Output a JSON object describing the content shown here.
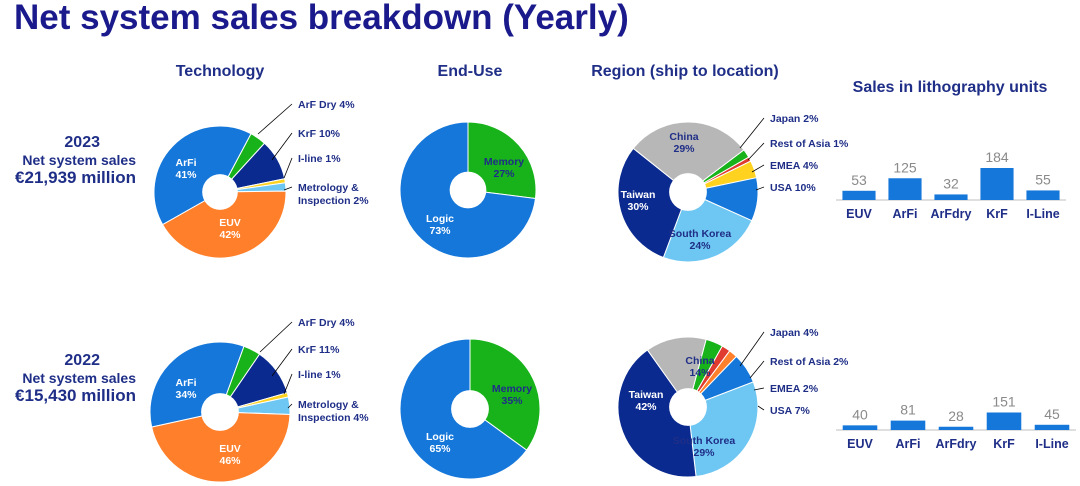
{
  "title": "Net system sales breakdown (Yearly)",
  "headers": {
    "technology": "Technology",
    "end_use": "End-Use",
    "region": "Region (ship to location)",
    "units": "Sales in lithography units"
  },
  "colors": {
    "title": "#1a1a8c",
    "label": "#1f2e87",
    "blue": "#1577d9",
    "orange": "#ff7f2a",
    "green": "#18b31b",
    "navy": "#0a2a8f",
    "yellow": "#ffd21f",
    "lightblue": "#6ec6f2",
    "gray": "#b7b7b7",
    "red": "#e03b2f",
    "darkblue": "#0b3a9e"
  },
  "years": [
    {
      "year": "2023",
      "label": "Net system sales",
      "amount": "€21,939 million"
    },
    {
      "year": "2022",
      "label": "Net system sales",
      "amount": "€15,430 million"
    }
  ],
  "chart_data": [
    {
      "type": "pie",
      "group": "technology",
      "year": "2023",
      "slices": [
        {
          "label": "ArF Dry",
          "value": 4,
          "display": "ArF Dry 4%"
        },
        {
          "label": "KrF",
          "value": 10,
          "display": "KrF 10%"
        },
        {
          "label": "I-line",
          "value": 1,
          "display": "I-line 1%"
        },
        {
          "label": "Metrology & Inspection",
          "value": 2,
          "display": "Metrology & Inspection 2%"
        },
        {
          "label": "EUV",
          "value": 42,
          "display": "EUV 42%"
        },
        {
          "label": "ArFi",
          "value": 41,
          "display": "ArFi 41%"
        }
      ]
    },
    {
      "type": "pie",
      "group": "end_use",
      "year": "2023",
      "slices": [
        {
          "label": "Memory",
          "value": 27,
          "display": "Memory 27%"
        },
        {
          "label": "Logic",
          "value": 73,
          "display": "Logic 73%"
        }
      ]
    },
    {
      "type": "pie",
      "group": "region",
      "year": "2023",
      "slices": [
        {
          "label": "Japan",
          "value": 2,
          "display": "Japan 2%"
        },
        {
          "label": "Rest of Asia",
          "value": 1,
          "display": "Rest of Asia 1%"
        },
        {
          "label": "EMEA",
          "value": 4,
          "display": "EMEA 4%"
        },
        {
          "label": "USA",
          "value": 10,
          "display": "USA 10%"
        },
        {
          "label": "South Korea",
          "value": 24,
          "display": "South Korea 24%"
        },
        {
          "label": "Taiwan",
          "value": 30,
          "display": "Taiwan 30%"
        },
        {
          "label": "China",
          "value": 29,
          "display": "China 29%"
        }
      ]
    },
    {
      "type": "bar",
      "group": "units",
      "year": "2023",
      "categories": [
        "EUV",
        "ArFi",
        "ArFdry",
        "KrF",
        "I-Line"
      ],
      "values": [
        53,
        125,
        32,
        184,
        55
      ]
    },
    {
      "type": "pie",
      "group": "technology",
      "year": "2022",
      "slices": [
        {
          "label": "ArF Dry",
          "value": 4,
          "display": "ArF Dry 4%"
        },
        {
          "label": "KrF",
          "value": 11,
          "display": "KrF 11%"
        },
        {
          "label": "I-line",
          "value": 1,
          "display": "I-line 1%"
        },
        {
          "label": "Metrology & Inspection",
          "value": 4,
          "display": "Metrology & Inspection 4%"
        },
        {
          "label": "EUV",
          "value": 46,
          "display": "EUV 46%"
        },
        {
          "label": "ArFi",
          "value": 34,
          "display": "ArFi 34%"
        }
      ]
    },
    {
      "type": "pie",
      "group": "end_use",
      "year": "2022",
      "slices": [
        {
          "label": "Memory",
          "value": 35,
          "display": "Memory 35%"
        },
        {
          "label": "Logic",
          "value": 65,
          "display": "Logic 65%"
        }
      ]
    },
    {
      "type": "pie",
      "group": "region",
      "year": "2022",
      "slices": [
        {
          "label": "Japan",
          "value": 4,
          "display": "Japan 4%"
        },
        {
          "label": "Rest of Asia",
          "value": 2,
          "display": "Rest of Asia 2%"
        },
        {
          "label": "EMEA",
          "value": 2,
          "display": "EMEA 2%"
        },
        {
          "label": "USA",
          "value": 7,
          "display": "USA 7%"
        },
        {
          "label": "South Korea",
          "value": 29,
          "display": "South Korea 29%"
        },
        {
          "label": "Taiwan",
          "value": 42,
          "display": "Taiwan 42%"
        },
        {
          "label": "China",
          "value": 14,
          "display": "China 14%"
        }
      ]
    },
    {
      "type": "bar",
      "group": "units",
      "year": "2022",
      "categories": [
        "EUV",
        "ArFi",
        "ArFdry",
        "KrF",
        "I-Line"
      ],
      "values": [
        40,
        81,
        28,
        151,
        45
      ]
    }
  ]
}
